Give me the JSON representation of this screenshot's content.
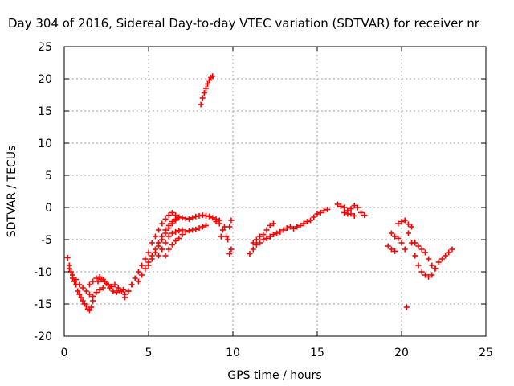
{
  "chart_data": {
    "type": "scatter",
    "title": "Day 304 of 2016, Sidereal Day-to-day VTEC variation (SDTVAR) for receiver nr",
    "xlabel": "GPS time / hours",
    "ylabel": "SDTVAR / TECUs",
    "xlim": [
      0,
      25
    ],
    "ylim": [
      -20,
      25
    ],
    "xticks": [
      0,
      5,
      10,
      15,
      20,
      25
    ],
    "yticks": [
      -20,
      -15,
      -10,
      -5,
      0,
      5,
      10,
      15,
      20,
      25
    ],
    "grid": true,
    "marker": "plus",
    "color": "#ff0000",
    "series": [
      {
        "name": "SDTVAR",
        "x": [
          0.2,
          0.3,
          0.4,
          0.5,
          0.6,
          0.7,
          0.8,
          0.9,
          1.0,
          1.1,
          1.2,
          1.3,
          1.4,
          1.5,
          1.6,
          1.7,
          0.3,
          0.5,
          0.7,
          0.9,
          1.1,
          1.3,
          1.5,
          1.7,
          1.9,
          2.1,
          2.3,
          1.5,
          1.7,
          1.9,
          2.1,
          2.3,
          2.5,
          2.7,
          2.9,
          3.1,
          3.3,
          3.5,
          2.0,
          2.2,
          2.4,
          2.6,
          2.8,
          3.0,
          3.2,
          3.4,
          3.6,
          3.8,
          4.0,
          3.6,
          3.8,
          4.0,
          4.2,
          4.4,
          4.6,
          4.8,
          5.0,
          5.2,
          5.4,
          5.6,
          5.8,
          6.0,
          6.2,
          6.4,
          4.4,
          4.6,
          4.8,
          5.0,
          5.2,
          5.4,
          5.6,
          5.8,
          6.0,
          6.2,
          6.4,
          6.6,
          5.0,
          5.2,
          5.4,
          5.6,
          5.8,
          6.0,
          6.2,
          6.4,
          6.6,
          6.8,
          5.6,
          5.8,
          6.0,
          6.2,
          6.4,
          6.6,
          6.8,
          7.0,
          6.6,
          6.8,
          7.0,
          7.2,
          7.4,
          7.6,
          7.8,
          8.0,
          8.2,
          8.4,
          8.6,
          8.8,
          9.0,
          9.2,
          6.0,
          6.2,
          6.4,
          6.6,
          6.8,
          7.0,
          7.2,
          7.4,
          7.6,
          7.8,
          8.0,
          8.2,
          8.4,
          9.0,
          9.2,
          9.4,
          9.6,
          9.8,
          9.7,
          9.9,
          9.3,
          9.5,
          9.9,
          9.8,
          8.1,
          8.2,
          8.3,
          8.4,
          8.5,
          8.6,
          8.7,
          8.8,
          11.0,
          11.2,
          11.4,
          11.6,
          11.8,
          12.0,
          12.2,
          12.4,
          12.6,
          12.8,
          13.0,
          13.2,
          13.4,
          13.6,
          13.8,
          14.0,
          14.2,
          14.4,
          14.6,
          14.8,
          15.0,
          15.2,
          15.4,
          15.6,
          11.2,
          11.4,
          11.6,
          11.8,
          12.0,
          12.2,
          12.4,
          16.2,
          16.4,
          16.6,
          16.8,
          17.0,
          17.2,
          17.4,
          17.6,
          17.8,
          16.6,
          16.8,
          17.0,
          17.2,
          19.2,
          19.4,
          19.6,
          19.8,
          20.0,
          20.2,
          20.4,
          20.6,
          19.4,
          19.6,
          19.8,
          20.0,
          20.2,
          20.4,
          20.6,
          20.8,
          21.0,
          21.2,
          21.4,
          21.6,
          21.8,
          22.0,
          22.2,
          22.4,
          22.6,
          22.8,
          23.0,
          20.8,
          21.0,
          21.2,
          21.4,
          21.6,
          21.8,
          22.0,
          20.3
        ],
        "y": [
          -7.8,
          -9.0,
          -10.0,
          -11.0,
          -11.5,
          -12.0,
          -13.0,
          -13.5,
          -14.0,
          -14.5,
          -15.0,
          -15.3,
          -15.8,
          -16.0,
          -15.5,
          -14.5,
          -9.5,
          -10.5,
          -11.2,
          -12.0,
          -12.5,
          -13.0,
          -13.5,
          -13.8,
          -13.2,
          -12.8,
          -12.5,
          -12.0,
          -11.5,
          -11.0,
          -10.8,
          -11.2,
          -11.8,
          -12.5,
          -13.0,
          -13.2,
          -13.0,
          -12.8,
          -11.5,
          -11.2,
          -11.5,
          -12.0,
          -12.3,
          -12.0,
          -12.5,
          -13.0,
          -13.5,
          -13.0,
          -12.0,
          -14.0,
          -13.0,
          -12.0,
          -11.0,
          -10.0,
          -9.0,
          -8.0,
          -7.0,
          -5.5,
          -4.5,
          -3.5,
          -2.5,
          -1.8,
          -1.2,
          -0.8,
          -11.5,
          -10.5,
          -9.5,
          -8.5,
          -7.5,
          -6.5,
          -5.5,
          -4.5,
          -3.5,
          -2.8,
          -2.2,
          -1.8,
          -9.0,
          -8.0,
          -7.0,
          -6.0,
          -5.0,
          -4.0,
          -3.2,
          -2.5,
          -2.0,
          -1.6,
          -7.5,
          -6.5,
          -5.5,
          -4.5,
          -4.0,
          -3.8,
          -3.6,
          -3.5,
          -1.2,
          -1.5,
          -1.6,
          -1.7,
          -1.8,
          -1.6,
          -1.4,
          -1.3,
          -1.2,
          -1.3,
          -1.4,
          -1.6,
          -1.8,
          -2.0,
          -7.5,
          -6.5,
          -5.8,
          -5.2,
          -4.8,
          -4.2,
          -3.8,
          -3.6,
          -3.5,
          -3.4,
          -3.2,
          -3.0,
          -2.8,
          -2.2,
          -2.5,
          -3.5,
          -4.5,
          -3.0,
          -5.0,
          -2.0,
          -4.5,
          -3.0,
          -6.5,
          -7.2,
          16.0,
          17.0,
          17.8,
          18.5,
          19.2,
          19.8,
          20.2,
          20.4,
          -7.2,
          -6.5,
          -5.8,
          -5.5,
          -5.0,
          -4.8,
          -4.5,
          -4.2,
          -4.0,
          -3.8,
          -3.5,
          -3.2,
          -3.0,
          -3.3,
          -3.0,
          -2.8,
          -2.5,
          -2.2,
          -2.0,
          -1.5,
          -1.0,
          -0.8,
          -0.5,
          -0.3,
          -5.5,
          -5.0,
          -4.5,
          -4.2,
          -3.5,
          -2.8,
          -2.5,
          0.5,
          0.2,
          0.0,
          -0.5,
          -0.2,
          0.3,
          0.0,
          -0.8,
          -1.2,
          -0.8,
          -1.0,
          -1.0,
          -1.3,
          -6.0,
          -6.5,
          -6.8,
          -2.5,
          -2.2,
          -2.0,
          -2.6,
          -3.0,
          -4.0,
          -4.5,
          -4.8,
          -5.5,
          -6.5,
          -4.0,
          -5.5,
          -7.5,
          -9.0,
          -10.0,
          -10.5,
          -10.8,
          -10.5,
          -9.5,
          -8.5,
          -8.0,
          -7.5,
          -7.0,
          -6.5,
          -5.5,
          -6.0,
          -6.5,
          -7.0,
          -8.0,
          -9.0,
          -9.5,
          -15.5
        ]
      }
    ]
  }
}
